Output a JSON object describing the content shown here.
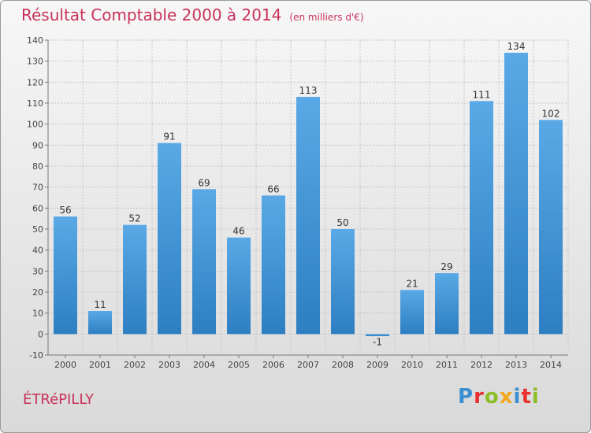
{
  "header": {
    "title": "Résultat Comptable 2000 à 2014",
    "subtitle": "(en milliers d'€)"
  },
  "footer": {
    "commune": "ÉTRéPILLY",
    "logo_letters": [
      "P",
      "r",
      "o",
      "x",
      "i",
      "t",
      "i"
    ],
    "logo_colors": [
      "#3b8fd0",
      "#e8312e",
      "#8cbf26",
      "#f0a81c",
      "#3b8fd0",
      "#e8312e",
      "#8cbf26"
    ]
  },
  "chart_data": {
    "type": "bar",
    "categories": [
      "2000",
      "2001",
      "2002",
      "2003",
      "2004",
      "2005",
      "2006",
      "2007",
      "2008",
      "2009",
      "2010",
      "2011",
      "2012",
      "2013",
      "2014"
    ],
    "values": [
      56,
      11,
      52,
      91,
      69,
      46,
      66,
      113,
      50,
      -1,
      21,
      29,
      111,
      134,
      102
    ],
    "ylim": [
      -10,
      140
    ],
    "yticks": [
      -10,
      0,
      10,
      20,
      30,
      40,
      50,
      60,
      70,
      80,
      90,
      100,
      110,
      120,
      130,
      140
    ],
    "grid": true,
    "bar_color": "#3f95d9"
  }
}
